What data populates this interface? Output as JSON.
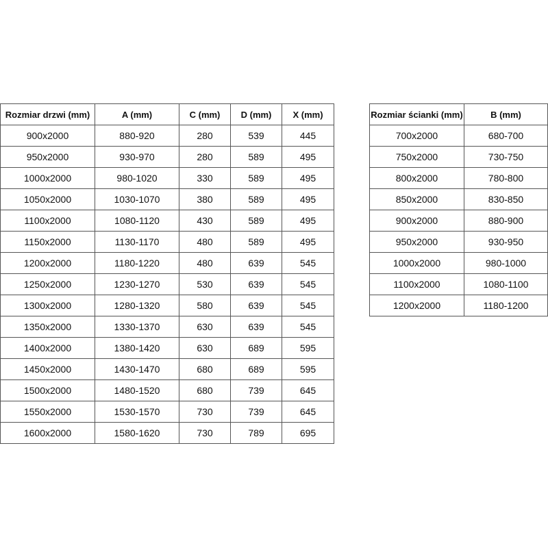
{
  "doors_table": {
    "headers": [
      "Rozmiar drzwi (mm)",
      "A (mm)",
      "C (mm)",
      "D (mm)",
      "X (mm)"
    ],
    "rows": [
      [
        "900x2000",
        "880-920",
        "280",
        "539",
        "445"
      ],
      [
        "950x2000",
        "930-970",
        "280",
        "589",
        "495"
      ],
      [
        "1000x2000",
        "980-1020",
        "330",
        "589",
        "495"
      ],
      [
        "1050x2000",
        "1030-1070",
        "380",
        "589",
        "495"
      ],
      [
        "1100x2000",
        "1080-1120",
        "430",
        "589",
        "495"
      ],
      [
        "1150x2000",
        "1130-1170",
        "480",
        "589",
        "495"
      ],
      [
        "1200x2000",
        "1180-1220",
        "480",
        "639",
        "545"
      ],
      [
        "1250x2000",
        "1230-1270",
        "530",
        "639",
        "545"
      ],
      [
        "1300x2000",
        "1280-1320",
        "580",
        "639",
        "545"
      ],
      [
        "1350x2000",
        "1330-1370",
        "630",
        "639",
        "545"
      ],
      [
        "1400x2000",
        "1380-1420",
        "630",
        "689",
        "595"
      ],
      [
        "1450x2000",
        "1430-1470",
        "680",
        "689",
        "595"
      ],
      [
        "1500x2000",
        "1480-1520",
        "680",
        "739",
        "645"
      ],
      [
        "1550x2000",
        "1530-1570",
        "730",
        "739",
        "645"
      ],
      [
        "1600x2000",
        "1580-1620",
        "730",
        "789",
        "695"
      ]
    ]
  },
  "wall_table": {
    "headers": [
      "Rozmiar ścianki (mm)",
      "B (mm)"
    ],
    "rows": [
      [
        "700x2000",
        "680-700"
      ],
      [
        "750x2000",
        "730-750"
      ],
      [
        "800x2000",
        "780-800"
      ],
      [
        "850x2000",
        "830-850"
      ],
      [
        "900x2000",
        "880-900"
      ],
      [
        "950x2000",
        "930-950"
      ],
      [
        "1000x2000",
        "980-1000"
      ],
      [
        "1100x2000",
        "1080-1100"
      ],
      [
        "1200x2000",
        "1180-1200"
      ]
    ]
  }
}
